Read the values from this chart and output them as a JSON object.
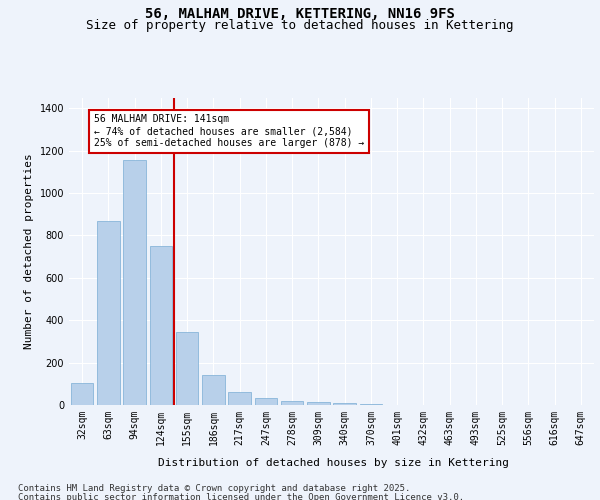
{
  "title1": "56, MALHAM DRIVE, KETTERING, NN16 9FS",
  "title2": "Size of property relative to detached houses in Kettering",
  "xlabel": "Distribution of detached houses by size in Kettering",
  "ylabel": "Number of detached properties",
  "categories": [
    "32sqm",
    "63sqm",
    "94sqm",
    "124sqm",
    "155sqm",
    "186sqm",
    "217sqm",
    "247sqm",
    "278sqm",
    "309sqm",
    "340sqm",
    "370sqm",
    "401sqm",
    "432sqm",
    "463sqm",
    "493sqm",
    "525sqm",
    "556sqm",
    "616sqm",
    "647sqm"
  ],
  "values": [
    105,
    870,
    1155,
    750,
    345,
    140,
    63,
    35,
    20,
    15,
    10,
    5,
    0,
    0,
    0,
    0,
    0,
    0,
    0,
    0
  ],
  "bar_color": "#b8d0ea",
  "bar_edge_color": "#7aadd4",
  "bar_width": 0.85,
  "vline_x": 3.5,
  "vline_color": "#cc0000",
  "annotation_text": "56 MALHAM DRIVE: 141sqm\n← 74% of detached houses are smaller (2,584)\n25% of semi-detached houses are larger (878) →",
  "annotation_box_color": "#cc0000",
  "ylim": [
    0,
    1450
  ],
  "yticks": [
    0,
    200,
    400,
    600,
    800,
    1000,
    1200,
    1400
  ],
  "footnote1": "Contains HM Land Registry data © Crown copyright and database right 2025.",
  "footnote2": "Contains public sector information licensed under the Open Government Licence v3.0.",
  "bg_color": "#eef3fb",
  "plot_bg_color": "#eef3fb",
  "grid_color": "#ffffff",
  "title_fontsize": 10,
  "subtitle_fontsize": 9,
  "label_fontsize": 8,
  "tick_fontsize": 7,
  "footnote_fontsize": 6.5
}
